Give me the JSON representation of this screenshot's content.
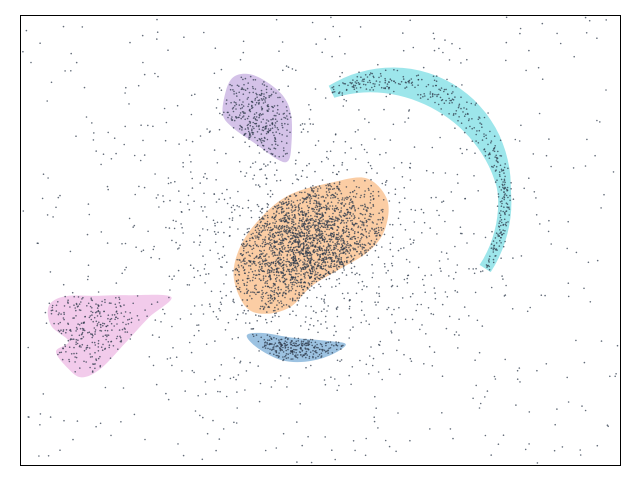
{
  "chart_data": {
    "type": "scatter",
    "title": "",
    "xlabel": "",
    "ylabel": "",
    "xlim": [
      0,
      100
    ],
    "ylim": [
      0,
      75
    ],
    "grid": false,
    "legend": "none",
    "axis_ticks": "hidden",
    "point_color": "#2f3b4c",
    "noise_count": 1400,
    "clusters": [
      {
        "shape": "blob",
        "color": "#f8a45a",
        "fill_opacity": 0.55,
        "point_count": 1900,
        "hull": [
          [
            37.5,
            26.5
          ],
          [
            35.6,
            31.6
          ],
          [
            37.0,
            37.0
          ],
          [
            40.9,
            42.0
          ],
          [
            45.3,
            45.2
          ],
          [
            51.6,
            47.0
          ],
          [
            57.7,
            47.8
          ],
          [
            61.2,
            44.2
          ],
          [
            60.8,
            39.2
          ],
          [
            58.1,
            35.6
          ],
          [
            53.4,
            32.7
          ],
          [
            48.6,
            29.8
          ],
          [
            45.0,
            26.3
          ],
          [
            40.7,
            25.2
          ]
        ]
      },
      {
        "shape": "arc",
        "color": "#3bcdd8",
        "fill_opacity": 0.5,
        "point_count": 380,
        "arc": {
          "cx": 60.5,
          "cy": 43.8,
          "r": 20.3,
          "width_min": 1.1,
          "width_max": 2.6,
          "a0": 115,
          "a1": -33
        }
      },
      {
        "shape": "blob",
        "color": "#b89ad8",
        "fill_opacity": 0.6,
        "point_count": 300,
        "hull": [
          [
            33.8,
            58.4
          ],
          [
            34.3,
            62.3
          ],
          [
            35.5,
            64.6
          ],
          [
            37.7,
            65.2
          ],
          [
            40.4,
            64.3
          ],
          [
            43.7,
            61.7
          ],
          [
            45.2,
            58.3
          ],
          [
            45.2,
            52.9
          ],
          [
            44.6,
            50.6
          ],
          [
            42.8,
            51.0
          ],
          [
            39.0,
            53.7
          ],
          [
            35.6,
            56.1
          ]
        ]
      },
      {
        "shape": "blob",
        "color": "#e9a9dd",
        "fill_opacity": 0.6,
        "point_count": 280,
        "hull": [
          [
            8.1,
            20.6
          ],
          [
            5.2,
            23.2
          ],
          [
            4.8,
            26.5
          ],
          [
            7.4,
            28.1
          ],
          [
            12.6,
            28.2
          ],
          [
            18.0,
            28.3
          ],
          [
            25.2,
            28.0
          ],
          [
            21.4,
            24.5
          ],
          [
            17.7,
            20.5
          ],
          [
            13.5,
            16.1
          ],
          [
            10.3,
            14.6
          ],
          [
            8.0,
            16.1
          ],
          [
            6.0,
            18.9
          ]
        ]
      },
      {
        "shape": "blob",
        "color": "#3a86c4",
        "fill_opacity": 0.5,
        "point_count": 250,
        "hull": [
          [
            37.8,
            21.6
          ],
          [
            39.6,
            19.5
          ],
          [
            43.5,
            17.5
          ],
          [
            47.5,
            17.2
          ],
          [
            51.5,
            18.2
          ],
          [
            54.3,
            20.1
          ],
          [
            51.0,
            20.7
          ],
          [
            45.5,
            21.2
          ],
          [
            40.5,
            22.0
          ]
        ]
      }
    ]
  }
}
